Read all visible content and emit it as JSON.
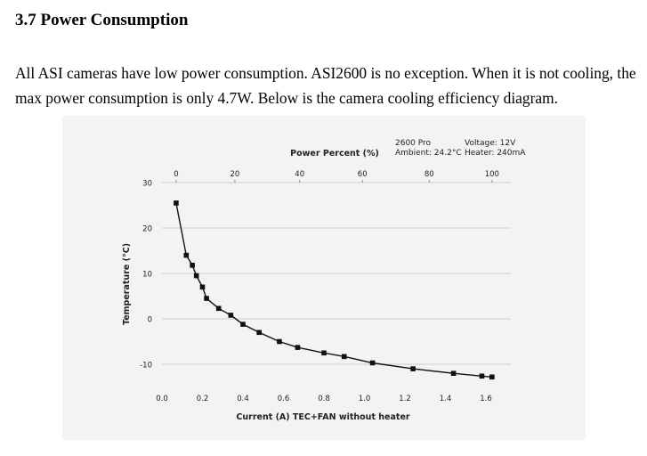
{
  "section": {
    "heading": "3.7 Power Consumption",
    "paragraph_line1": "All ASI cameras have low power consumption. ASI2600 is no exception. When it is not cooling, the",
    "paragraph_line2": "max power consumption is only 4.7W. Below is the camera cooling efficiency diagram."
  },
  "chart_data": {
    "type": "line",
    "title_top_axis": "Power Percent (%)",
    "xlabel": "Current (A)  TEC+FAN without heater",
    "ylabel": "Temperature (°C)",
    "x": [
      0.07,
      0.12,
      0.15,
      0.17,
      0.2,
      0.22,
      0.28,
      0.34,
      0.4,
      0.48,
      0.58,
      0.67,
      0.8,
      0.9,
      1.04,
      1.24,
      1.44,
      1.58,
      1.63
    ],
    "y": [
      25.5,
      14.0,
      11.8,
      9.5,
      7.0,
      4.5,
      2.3,
      0.8,
      -1.2,
      -3.0,
      -5.0,
      -6.3,
      -7.5,
      -8.3,
      -9.7,
      -11.0,
      -12.0,
      -12.6,
      -12.8
    ],
    "xlim": [
      0.0,
      1.72
    ],
    "ylim": [
      -14,
      31
    ],
    "x_ticks": [
      0.0,
      0.2,
      0.4,
      0.6,
      0.8,
      1.0,
      1.2,
      1.4,
      1.6
    ],
    "x_tick_labels": [
      "0.0",
      "0.2",
      "0.4",
      "0.6",
      "0.8",
      "1.0",
      "1.2",
      "1.4",
      "1.6"
    ],
    "y_ticks": [
      30,
      20,
      10,
      0,
      -10
    ],
    "y_tick_labels": [
      "30",
      "20",
      "10",
      "0",
      "-10"
    ],
    "top_ticks": [
      0,
      20,
      40,
      60,
      80,
      100
    ],
    "top_tick_labels": [
      "0",
      "20",
      "40",
      "60",
      "80",
      "100"
    ],
    "top_tick_x_current": [
      0.07,
      0.36,
      0.68,
      0.99,
      1.32,
      1.63
    ],
    "grid": true,
    "annotations": {
      "model": "2600 Pro",
      "ambient": "Ambient: 24.2°C",
      "voltage": "Voltage: 12V",
      "heater": "Heater: 240mA"
    },
    "line_color": "#111111",
    "grid_color": "#cccccc"
  }
}
